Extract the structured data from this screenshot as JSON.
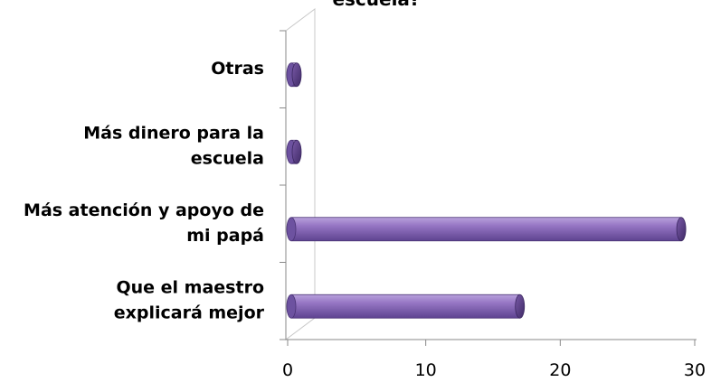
{
  "chart_data": {
    "type": "bar",
    "orientation": "horizontal",
    "title": "escuela?",
    "categories": [
      [
        "Otras"
      ],
      [
        "Más  dinero para la",
        "escuela"
      ],
      [
        "Más atención y apoyo de",
        "mi papá"
      ],
      [
        "Que  el maestro",
        "explicará mejor"
      ]
    ],
    "values": [
      0,
      0,
      29,
      17
    ],
    "x_ticks": [
      "0",
      "10",
      "20",
      "30"
    ],
    "xlim": [
      0,
      30
    ],
    "bar_color": "#8a6bb8",
    "grid": false,
    "legend": "none"
  }
}
